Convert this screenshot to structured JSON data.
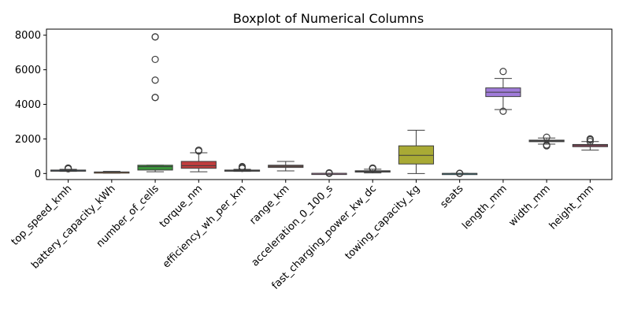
{
  "chart_data": {
    "type": "boxplot",
    "title": "Boxplot of Numerical Columns",
    "xlabel": "",
    "ylabel": "",
    "ylim": [
      -350,
      8350
    ],
    "y_ticks": [
      0,
      2000,
      4000,
      6000,
      8000
    ],
    "grid": false,
    "legend": "none",
    "series": [
      {
        "name": "top_speed_kmh",
        "color": "#3274a1",
        "q1": 160,
        "median": 180,
        "q3": 200,
        "whisker_low": 120,
        "whisker_high": 240,
        "outliers": [
          270,
          300,
          320
        ]
      },
      {
        "name": "battery_capacity_kWh",
        "color": "#e1812c",
        "q1": 60,
        "median": 75,
        "q3": 90,
        "whisker_low": 20,
        "whisker_high": 120,
        "outliers": []
      },
      {
        "name": "number_of_cells",
        "color": "#3a923a",
        "q1": 200,
        "median": 400,
        "q3": 480,
        "whisker_low": 100,
        "whisker_high": 480,
        "outliers": [
          4400,
          4400,
          5400,
          6600,
          7900,
          7900
        ]
      },
      {
        "name": "torque_nm",
        "color": "#c03d3e",
        "q1": 300,
        "median": 450,
        "q3": 700,
        "whisker_low": 100,
        "whisker_high": 1200,
        "outliers": [
          1300,
          1350
        ]
      },
      {
        "name": "efficiency_wh_per_km",
        "color": "#9372b2",
        "q1": 150,
        "median": 170,
        "q3": 200,
        "whisker_low": 120,
        "whisker_high": 240,
        "outliers": [
          300,
          350,
          400
        ]
      },
      {
        "name": "range_km",
        "color": "#845b53",
        "q1": 350,
        "median": 420,
        "q3": 480,
        "whisker_low": 150,
        "whisker_high": 700,
        "outliers": []
      },
      {
        "name": "acceleration_0_100_s",
        "color": "#d684bd",
        "q1": 5,
        "median": 7,
        "q3": 9,
        "whisker_low": 2,
        "whisker_high": 14,
        "outliers": [
          10,
          20,
          40
        ]
      },
      {
        "name": "fast_charging_power_kw_dc",
        "color": "#7f7f7f",
        "q1": 80,
        "median": 120,
        "q3": 160,
        "whisker_low": 30,
        "whisker_high": 250,
        "outliers": [
          280,
          300,
          320
        ]
      },
      {
        "name": "towing_capacity_kg",
        "color": "#a9aa35",
        "q1": 550,
        "median": 1050,
        "q3": 1600,
        "whisker_low": 0,
        "whisker_high": 2500,
        "outliers": []
      },
      {
        "name": "seats",
        "color": "#2ea0b6",
        "q1": 5,
        "median": 5,
        "q3": 5,
        "whisker_low": 2,
        "whisker_high": 9,
        "outliers": [
          2,
          7,
          9
        ]
      },
      {
        "name": "length_mm",
        "color": "#a07cd9",
        "q1": 4450,
        "median": 4700,
        "q3": 4950,
        "whisker_low": 3700,
        "whisker_high": 5500,
        "outliers": [
          3600,
          5900
        ]
      },
      {
        "name": "width_mm",
        "color": "#545454",
        "q1": 1840,
        "median": 1880,
        "q3": 1930,
        "whisker_low": 1700,
        "whisker_high": 2050,
        "outliers": [
          1600,
          1650,
          2100
        ]
      },
      {
        "name": "height_mm",
        "color": "#b84a6b",
        "q1": 1550,
        "median": 1620,
        "q3": 1680,
        "whisker_low": 1350,
        "whisker_high": 1850,
        "outliers": [
          1850,
          1950,
          2000
        ]
      }
    ]
  }
}
